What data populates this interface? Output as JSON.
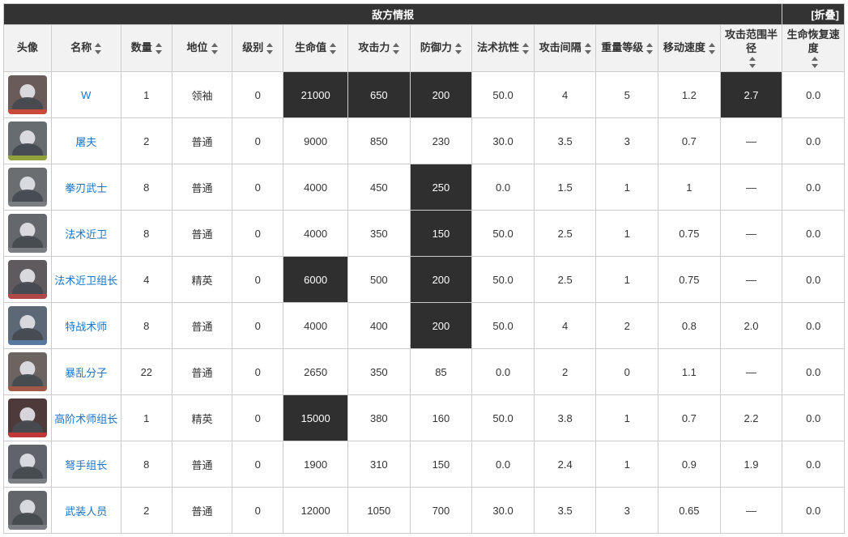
{
  "title": "敌方情报",
  "collapse_label": "[折叠]",
  "columns": [
    {
      "key": "avatar",
      "label": "头像",
      "sortable": false
    },
    {
      "key": "name",
      "label": "名称",
      "sortable": true
    },
    {
      "key": "qty",
      "label": "数量",
      "sortable": true
    },
    {
      "key": "status",
      "label": "地位",
      "sortable": true
    },
    {
      "key": "level",
      "label": "级别",
      "sortable": true
    },
    {
      "key": "hp",
      "label": "生命值",
      "sortable": true
    },
    {
      "key": "atk",
      "label": "攻击力",
      "sortable": true
    },
    {
      "key": "def",
      "label": "防御力",
      "sortable": true
    },
    {
      "key": "res",
      "label": "法术抗性",
      "sortable": true
    },
    {
      "key": "interval",
      "label": "攻击间隔",
      "sortable": true
    },
    {
      "key": "weight",
      "label": "重量等级",
      "sortable": true
    },
    {
      "key": "speed",
      "label": "移动速度",
      "sortable": true
    },
    {
      "key": "range",
      "label": "攻击范围半径",
      "sortable": true
    },
    {
      "key": "regen",
      "label": "生命恢复速度",
      "sortable": true
    }
  ],
  "rows": [
    {
      "avatar_bg": "#6a5b5b",
      "avatar_face": "#e8e0e0",
      "avatar_body": "#3b2e2e",
      "avatar_accent": "#c94a3b",
      "name": "W",
      "qty": "1",
      "status": "领袖",
      "level": "0",
      "hp": "21000",
      "atk": "650",
      "def": "200",
      "res": "50.0",
      "interval": "4",
      "weight": "5",
      "speed": "1.2",
      "range": "2.7",
      "regen": "0.0",
      "dark": [
        "hp",
        "atk",
        "def",
        "range"
      ]
    },
    {
      "avatar_bg": "#666c70",
      "avatar_face": "#e6e6e6",
      "avatar_body": "#4b5257",
      "avatar_accent": "#8fa03c",
      "name": "屠夫",
      "qty": "2",
      "status": "普通",
      "level": "0",
      "hp": "9000",
      "atk": "850",
      "def": "230",
      "res": "30.0",
      "interval": "3.5",
      "weight": "3",
      "speed": "0.7",
      "range": "—",
      "regen": "0.0",
      "dark": []
    },
    {
      "avatar_bg": "#6a6e70",
      "avatar_face": "#e0e0e4",
      "avatar_body": "#4a4e52",
      "avatar_accent": "#7a7e82",
      "name": "拳刃武士",
      "qty": "8",
      "status": "普通",
      "level": "0",
      "hp": "4000",
      "atk": "450",
      "def": "250",
      "res": "0.0",
      "interval": "1.5",
      "weight": "1",
      "speed": "1",
      "range": "—",
      "regen": "0.0",
      "dark": [
        "def"
      ]
    },
    {
      "avatar_bg": "#64686c",
      "avatar_face": "#dddde2",
      "avatar_body": "#46494d",
      "avatar_accent": "#7a7e82",
      "name": "法术近卫",
      "qty": "8",
      "status": "普通",
      "level": "0",
      "hp": "4000",
      "atk": "350",
      "def": "150",
      "res": "50.0",
      "interval": "2.5",
      "weight": "1",
      "speed": "0.75",
      "range": "—",
      "regen": "0.0",
      "dark": [
        "def"
      ]
    },
    {
      "avatar_bg": "#5e5a5e",
      "avatar_face": "#d8d4d8",
      "avatar_body": "#3e363e",
      "avatar_accent": "#b04848",
      "name": "法术近卫组长",
      "qty": "4",
      "status": "精英",
      "level": "0",
      "hp": "6000",
      "atk": "500",
      "def": "200",
      "res": "50.0",
      "interval": "2.5",
      "weight": "1",
      "speed": "0.75",
      "range": "—",
      "regen": "0.0",
      "dark": [
        "hp",
        "def"
      ]
    },
    {
      "avatar_bg": "#5c6876",
      "avatar_face": "#d8e0ea",
      "avatar_body": "#3e4856",
      "avatar_accent": "#5878a0",
      "name": "特战术师",
      "qty": "8",
      "status": "普通",
      "level": "0",
      "hp": "4000",
      "atk": "400",
      "def": "200",
      "res": "50.0",
      "interval": "4",
      "weight": "2",
      "speed": "0.8",
      "range": "2.0",
      "regen": "0.0",
      "dark": [
        "def"
      ]
    },
    {
      "avatar_bg": "#6c6460",
      "avatar_face": "#e0d8d4",
      "avatar_body": "#4c4440",
      "avatar_accent": "#a05848",
      "name": "暴乱分子",
      "qty": "22",
      "status": "普通",
      "level": "0",
      "hp": "2650",
      "atk": "350",
      "def": "85",
      "res": "0.0",
      "interval": "2",
      "weight": "0",
      "speed": "1.1",
      "range": "—",
      "regen": "0.0",
      "dark": []
    },
    {
      "avatar_bg": "#4e3a3a",
      "avatar_face": "#caa8a8",
      "avatar_body": "#2e1e1e",
      "avatar_accent": "#c03838",
      "name": "高阶术师组长",
      "qty": "1",
      "status": "精英",
      "level": "0",
      "hp": "15000",
      "atk": "380",
      "def": "160",
      "res": "50.0",
      "interval": "3.8",
      "weight": "1",
      "speed": "0.7",
      "range": "2.2",
      "regen": "0.0",
      "dark": [
        "hp"
      ]
    },
    {
      "avatar_bg": "#60646a",
      "avatar_face": "#d8dce2",
      "avatar_body": "#40444a",
      "avatar_accent": "#7a7e82",
      "name": "弩手组长",
      "qty": "8",
      "status": "普通",
      "level": "0",
      "hp": "1900",
      "atk": "310",
      "def": "150",
      "res": "0.0",
      "interval": "2.4",
      "weight": "1",
      "speed": "0.9",
      "range": "1.9",
      "regen": "0.0",
      "dark": []
    },
    {
      "avatar_bg": "#62666a",
      "avatar_face": "#dadde0",
      "avatar_body": "#42464a",
      "avatar_accent": "#7a7e82",
      "name": "武装人员",
      "qty": "2",
      "status": "普通",
      "level": "0",
      "hp": "12000",
      "atk": "1050",
      "def": "700",
      "res": "30.0",
      "interval": "3.5",
      "weight": "3",
      "speed": "0.65",
      "range": "—",
      "regen": "0.0",
      "dark": []
    }
  ]
}
